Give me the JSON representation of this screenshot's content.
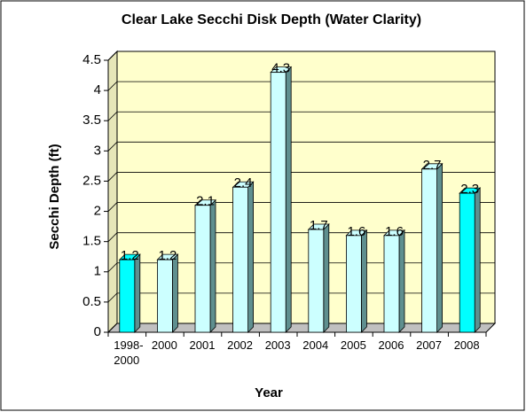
{
  "chart_data": {
    "type": "bar",
    "title": "Clear Lake Secchi Disk Depth (Water Clarity)",
    "x_label": "Year",
    "y_label": "Secchi Depth (ft)",
    "categories": [
      "1998-2000",
      "2000",
      "2001",
      "2002",
      "2003",
      "2004",
      "2005",
      "2006",
      "2007",
      "2008"
    ],
    "values": [
      1.2,
      1.2,
      2.1,
      2.4,
      4.3,
      1.7,
      1.6,
      1.6,
      2.7,
      2.3
    ],
    "colors": [
      "#00ffff",
      "#ccffff",
      "#ccffff",
      "#ccffff",
      "#ccffff",
      "#ccffff",
      "#ccffff",
      "#ccffff",
      "#ccffff",
      "#00ffff"
    ],
    "ylim": [
      0,
      4.5
    ],
    "yticks": [
      0,
      0.5,
      1,
      1.5,
      2,
      2.5,
      3,
      3.5,
      4,
      4.5
    ],
    "grid": true
  }
}
